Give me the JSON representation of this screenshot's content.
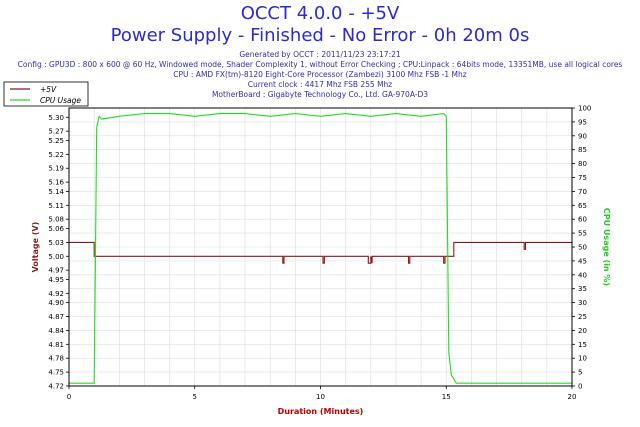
{
  "header": {
    "title": "OCCT 4.0.0 - +5V",
    "subtitle": "Power Supply - Finished - No Error - 0h 20m 0s",
    "generated": "Generated by OCCT : 2011/11/23 23:17:21",
    "config": "Config : GPU3D : 800 x 600 @ 60 Hz, Windowed mode, Shader Complexity 1, without Error Checking ; CPU:Linpack : 64bits mode, 13351MB, use all logical cores",
    "cpu": "CPU : AMD FX(tm)-8120 Eight-Core Processor (Zambezi) 3100 Mhz FSB -1 Mhz",
    "clock": "Current clock : 4417 Mhz FSB 255 Mhz",
    "motherboard": "MotherBoard : Gigabyte Technology Co., Ltd. GA-970A-D3"
  },
  "colors": {
    "voltage": "#8b1a1a",
    "cpu": "#22dd22",
    "title": "#2a2ad8",
    "axis_label_left": "#8b1a1a",
    "axis_label_right": "#22cc22",
    "axis_label_bottom": "#c00000"
  },
  "chart_data": {
    "type": "line",
    "xlabel": "Duration (Minutes)",
    "ylabel_left": "Voltage (V)",
    "ylabel_right": "CPU Usage (in %)",
    "xlim": [
      0,
      20
    ],
    "ylim_left": [
      4.72,
      5.32
    ],
    "ylim_right": [
      0,
      100
    ],
    "x_ticks": [
      "0",
      "5",
      "10",
      "15",
      "20"
    ],
    "y_ticks_left": [
      "4.72",
      "4.75",
      "4.78",
      "4.81",
      "4.84",
      "4.87",
      "4.90",
      "4.92",
      "4.95",
      "4.97",
      "5.00",
      "5.03",
      "5.06",
      "5.08",
      "5.11",
      "5.14",
      "5.16",
      "5.19",
      "5.22",
      "5.25",
      "5.27",
      "5.30"
    ],
    "y_ticks_right": [
      "0",
      "5",
      "10",
      "15",
      "20",
      "25",
      "30",
      "35",
      "40",
      "45",
      "50",
      "55",
      "60",
      "65",
      "70",
      "75",
      "80",
      "85",
      "90",
      "95",
      "100"
    ],
    "legend_position": "top-left",
    "grid": true,
    "series": [
      {
        "name": "+5V",
        "axis": "left",
        "x": [
          0,
          1.0,
          1.0,
          8.5,
          8.5,
          8.55,
          8.55,
          10.1,
          10.1,
          10.15,
          10.15,
          11.9,
          11.9,
          12.0,
          12.0,
          12.05,
          12.05,
          13.5,
          13.5,
          13.55,
          13.55,
          14.9,
          14.9,
          14.95,
          14.95,
          15.3,
          15.3,
          18.1,
          18.1,
          18.15,
          18.15,
          20
        ],
        "values": [
          5.03,
          5.03,
          5.0,
          5.0,
          4.985,
          4.985,
          5.0,
          5.0,
          4.985,
          4.985,
          5.0,
          5.0,
          4.985,
          4.985,
          5.0,
          4.985,
          5.0,
          5.0,
          4.985,
          4.985,
          5.0,
          5.0,
          4.985,
          4.985,
          5.0,
          5.0,
          5.03,
          5.03,
          5.015,
          5.015,
          5.03,
          5.03
        ]
      },
      {
        "name": "CPU Usage",
        "axis": "right",
        "x": [
          0,
          0.5,
          1.0,
          1.1,
          1.2,
          1.3,
          2.0,
          3.0,
          4.0,
          5.0,
          6.0,
          7.0,
          8.0,
          9.0,
          10.0,
          11.0,
          12.0,
          13.0,
          14.0,
          14.9,
          15.0,
          15.1,
          15.2,
          15.4,
          16.0,
          17.0,
          18.0,
          19.0,
          20
        ],
        "values": [
          1,
          1,
          1,
          93,
          97,
          96,
          97,
          98,
          98,
          97,
          98,
          98,
          97,
          98,
          97,
          98,
          97,
          98,
          97,
          98,
          97,
          12,
          4,
          1,
          1,
          1,
          1,
          1,
          1
        ]
      }
    ]
  }
}
